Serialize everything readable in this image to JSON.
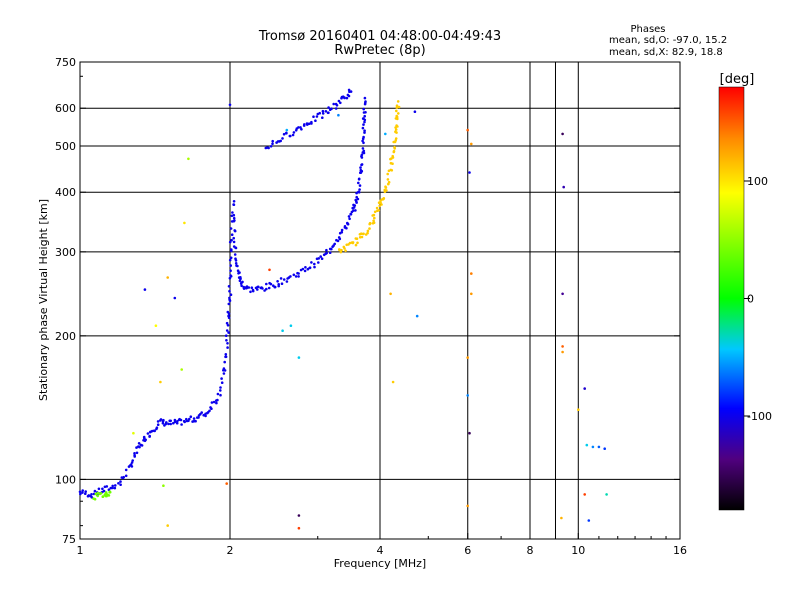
{
  "header": {
    "title_line1": "Tromsø 20160401 04:48:00-04:49:43",
    "title_line2": "RwPretec (8p)"
  },
  "phases_box": {
    "title": "Phases",
    "line_o": "mean, sd,O: -97.0, 15.2",
    "line_x": "mean, sd,X:  82.9, 18.8"
  },
  "colorbar": {
    "label": "[deg]",
    "ticks": [
      {
        "value": 100,
        "label": "100"
      },
      {
        "value": 0,
        "label": "0"
      },
      {
        "value": -100,
        "label": "-100"
      }
    ],
    "range": [
      -180,
      180
    ]
  },
  "chart_data": {
    "type": "scatter",
    "title": "Tromsø 20160401 04:48:00-04:49:43",
    "subtitle": "RwPretec (8p)",
    "xlabel": "Frequency [MHz]",
    "ylabel": "Stationary phase Virtual Height [km]",
    "x_scale": "log",
    "y_scale": "log",
    "xlim": [
      1,
      16
    ],
    "ylim": [
      75,
      750
    ],
    "x_ticks": [
      {
        "value": 1,
        "label": "1"
      },
      {
        "value": 2,
        "label": "2"
      },
      {
        "value": 4,
        "label": "4"
      },
      {
        "value": 6,
        "label": "6"
      },
      {
        "value": 8,
        "label": "8"
      },
      {
        "value": 10,
        "label": "10"
      },
      {
        "value": 16,
        "label": "16"
      }
    ],
    "x_grid": [
      2,
      4,
      6,
      8,
      9,
      10
    ],
    "y_ticks": [
      {
        "value": 75,
        "label": "75"
      },
      {
        "value": 100,
        "label": "100"
      },
      {
        "value": 200,
        "label": "200"
      },
      {
        "value": 300,
        "label": "300"
      },
      {
        "value": 400,
        "label": "400"
      },
      {
        "value": 500,
        "label": "500"
      },
      {
        "value": 600,
        "label": "600"
      },
      {
        "value": 750,
        "label": "750"
      }
    ],
    "y_grid": [
      100,
      200,
      300,
      400,
      500,
      600
    ],
    "color_by": "phase [deg]",
    "traces": [
      {
        "name": "",
        "phase": -100,
        "points": [
          [
            1.0,
            94
          ],
          [
            1.06,
            93
          ],
          [
            1.12,
            95
          ],
          [
            1.2,
            98
          ],
          [
            1.27,
            108
          ],
          [
            1.32,
            118
          ],
          [
            1.38,
            125
          ],
          [
            1.45,
            132
          ],
          [
            1.52,
            131
          ],
          [
            1.6,
            132
          ],
          [
            1.7,
            134
          ],
          [
            1.8,
            138
          ],
          [
            1.9,
            150
          ],
          [
            1.96,
            175
          ],
          [
            1.98,
            210
          ],
          [
            2.0,
            245
          ],
          [
            2.01,
            300
          ],
          [
            2.03,
            380
          ],
          [
            2.05,
            310
          ],
          [
            2.08,
            270
          ],
          [
            2.12,
            255
          ],
          [
            2.2,
            250
          ],
          [
            2.35,
            252
          ],
          [
            2.5,
            258
          ],
          [
            2.7,
            268
          ],
          [
            2.9,
            280
          ],
          [
            3.1,
            295
          ],
          [
            3.3,
            320
          ],
          [
            3.45,
            345
          ],
          [
            3.55,
            372
          ],
          [
            3.62,
            400
          ],
          [
            3.67,
            450
          ],
          [
            3.7,
            500
          ],
          [
            3.72,
            560
          ],
          [
            3.73,
            630
          ]
        ]
      },
      {
        "name": "",
        "phase": -100,
        "points": [
          [
            2.35,
            495
          ],
          [
            2.55,
            520
          ],
          [
            2.75,
            545
          ],
          [
            2.95,
            568
          ],
          [
            3.15,
            592
          ],
          [
            3.35,
            625
          ],
          [
            3.5,
            650
          ]
        ]
      },
      {
        "name": "",
        "phase": 110,
        "points": [
          [
            3.3,
            300
          ],
          [
            3.5,
            310
          ],
          [
            3.7,
            325
          ],
          [
            3.85,
            345
          ],
          [
            3.98,
            372
          ],
          [
            4.1,
            400
          ],
          [
            4.2,
            450
          ],
          [
            4.27,
            500
          ],
          [
            4.32,
            560
          ],
          [
            4.35,
            620
          ]
        ]
      },
      {
        "name": "",
        "phase": 40,
        "points": [
          [
            1.07,
            92
          ],
          [
            1.12,
            93
          ],
          [
            1.15,
            94
          ]
        ]
      }
    ],
    "scatter_points": [
      {
        "x": 1.65,
        "y": 470,
        "phase": 60
      },
      {
        "x": 1.62,
        "y": 345,
        "phase": 100
      },
      {
        "x": 1.5,
        "y": 265,
        "phase": 120
      },
      {
        "x": 1.42,
        "y": 210,
        "phase": 90
      },
      {
        "x": 1.35,
        "y": 250,
        "phase": -100
      },
      {
        "x": 1.55,
        "y": 240,
        "phase": -100
      },
      {
        "x": 1.28,
        "y": 125,
        "phase": 80
      },
      {
        "x": 1.45,
        "y": 160,
        "phase": 110
      },
      {
        "x": 1.6,
        "y": 170,
        "phase": 60
      },
      {
        "x": 1.47,
        "y": 97,
        "phase": 50
      },
      {
        "x": 1.5,
        "y": 80,
        "phase": 110
      },
      {
        "x": 1.97,
        "y": 98,
        "phase": 150
      },
      {
        "x": 2.0,
        "y": 610,
        "phase": -100
      },
      {
        "x": 2.55,
        "y": 205,
        "phase": -40
      },
      {
        "x": 2.65,
        "y": 210,
        "phase": -40
      },
      {
        "x": 2.75,
        "y": 180,
        "phase": -40
      },
      {
        "x": 2.6,
        "y": 540,
        "phase": -50
      },
      {
        "x": 2.4,
        "y": 275,
        "phase": 160
      },
      {
        "x": 2.75,
        "y": 84,
        "phase": -150
      },
      {
        "x": 2.75,
        "y": 79,
        "phase": 160
      },
      {
        "x": 3.3,
        "y": 580,
        "phase": -60
      },
      {
        "x": 4.2,
        "y": 245,
        "phase": 120
      },
      {
        "x": 4.25,
        "y": 160,
        "phase": 110
      },
      {
        "x": 4.1,
        "y": 530,
        "phase": -50
      },
      {
        "x": 4.7,
        "y": 590,
        "phase": -100
      },
      {
        "x": 4.75,
        "y": 220,
        "phase": -60
      },
      {
        "x": 6.0,
        "y": 540,
        "phase": 150
      },
      {
        "x": 6.1,
        "y": 505,
        "phase": 130
      },
      {
        "x": 6.05,
        "y": 440,
        "phase": -100
      },
      {
        "x": 6.1,
        "y": 270,
        "phase": 140
      },
      {
        "x": 6.1,
        "y": 245,
        "phase": 130
      },
      {
        "x": 6.0,
        "y": 180,
        "phase": 130
      },
      {
        "x": 6.0,
        "y": 150,
        "phase": -60
      },
      {
        "x": 6.05,
        "y": 125,
        "phase": -150
      },
      {
        "x": 6.0,
        "y": 88,
        "phase": 130
      },
      {
        "x": 9.3,
        "y": 530,
        "phase": -150
      },
      {
        "x": 9.35,
        "y": 410,
        "phase": -120
      },
      {
        "x": 9.3,
        "y": 245,
        "phase": -130
      },
      {
        "x": 9.3,
        "y": 190,
        "phase": 150
      },
      {
        "x": 9.3,
        "y": 185,
        "phase": 130
      },
      {
        "x": 9.25,
        "y": 83,
        "phase": 120
      },
      {
        "x": 10.3,
        "y": 155,
        "phase": -110
      },
      {
        "x": 10.0,
        "y": 140,
        "phase": 110
      },
      {
        "x": 10.4,
        "y": 118,
        "phase": -40
      },
      {
        "x": 10.7,
        "y": 117,
        "phase": -60
      },
      {
        "x": 11.0,
        "y": 117,
        "phase": -70
      },
      {
        "x": 11.3,
        "y": 116,
        "phase": -80
      },
      {
        "x": 10.3,
        "y": 93,
        "phase": 160
      },
      {
        "x": 11.4,
        "y": 93,
        "phase": -30
      },
      {
        "x": 10.5,
        "y": 82,
        "phase": -80
      }
    ]
  }
}
